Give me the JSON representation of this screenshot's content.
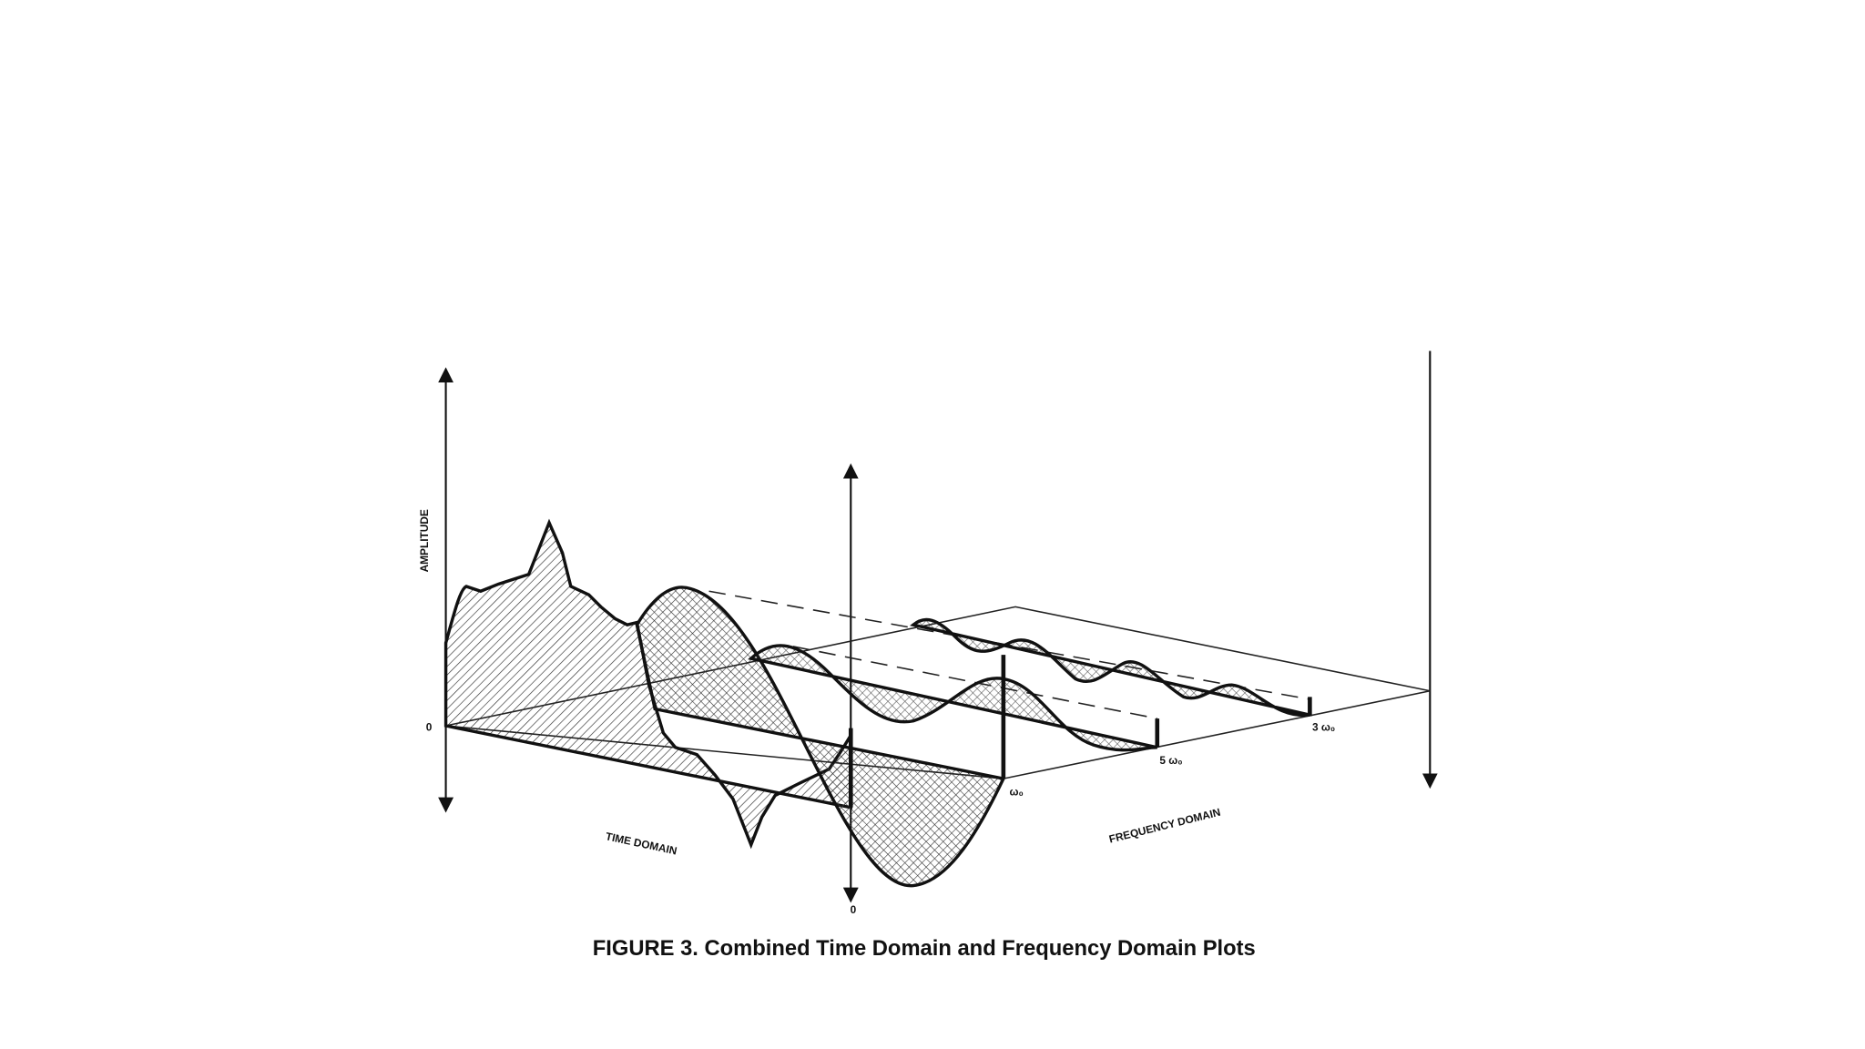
{
  "figure": {
    "labels": {
      "amplitude": "AMPLITUDE",
      "origin_left": "0",
      "origin_bottom": "0",
      "time_domain": "TIME DOMAIN",
      "frequency_domain": "FREQUENCY DOMAIN",
      "fundamental": "ω₀",
      "fifth_harmonic": "5 ω₀",
      "third_harmonic": "3 ω₀"
    },
    "caption": "FIGURE 3. Combined Time Domain and Frequency Domain Plots"
  }
}
